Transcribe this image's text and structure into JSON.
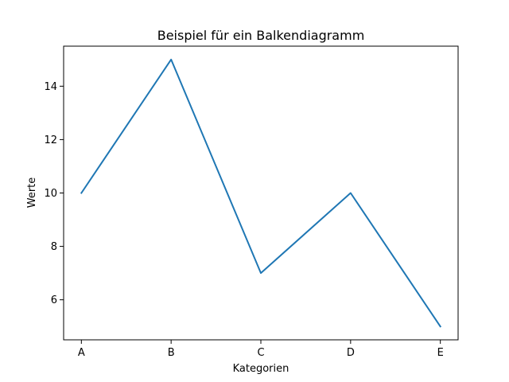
{
  "chart_data": {
    "type": "line",
    "title": "Beispiel für ein Balkendiagramm",
    "xlabel": "Kategorien",
    "ylabel": "Werte",
    "categories": [
      "A",
      "B",
      "C",
      "D",
      "E"
    ],
    "series": [
      {
        "values": [
          10,
          15,
          7,
          10,
          5
        ],
        "color": "#1f77b4"
      }
    ],
    "ylim": [
      4.5,
      15.5
    ],
    "yticks": [
      6,
      8,
      10,
      12,
      14
    ],
    "grid": false,
    "legend": false
  }
}
